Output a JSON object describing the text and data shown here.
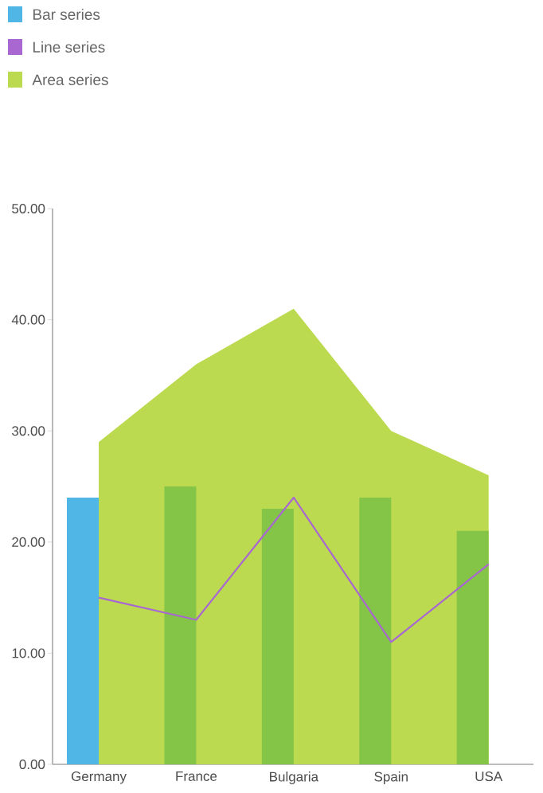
{
  "chart_data": {
    "type": "bar",
    "categories": [
      "Germany",
      "France",
      "Bulgaria",
      "Spain",
      "USA"
    ],
    "series": [
      {
        "name": "Bar series",
        "type": "bar",
        "color": "#4fb6e6",
        "colors": [
          "#4fb6e6",
          "#84c547",
          "#84c547",
          "#84c547",
          "#84c547"
        ],
        "values": [
          24,
          25,
          23,
          24,
          21
        ]
      },
      {
        "name": "Line series",
        "type": "line",
        "color": "#a867d1",
        "values": [
          15,
          13,
          24,
          11,
          18
        ]
      },
      {
        "name": "Area series",
        "type": "area",
        "color": "#bcda4f",
        "values": [
          29,
          36,
          41,
          30,
          26
        ]
      }
    ],
    "ylim": [
      0,
      50
    ],
    "yticks": [
      {
        "value": 0,
        "label": "0.00"
      },
      {
        "value": 10,
        "label": "10.00"
      },
      {
        "value": 20,
        "label": "20.00"
      },
      {
        "value": 30,
        "label": "30.00"
      },
      {
        "value": 40,
        "label": "40.00"
      },
      {
        "value": 50,
        "label": "50.00"
      }
    ],
    "legend": "top left"
  }
}
